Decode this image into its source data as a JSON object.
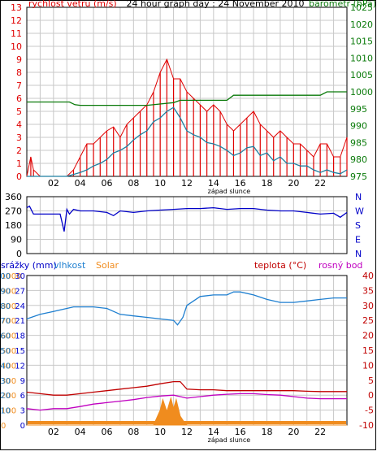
{
  "colors": {
    "wind": "#e00000",
    "gust": "#1f7fa0",
    "pressure": "#0a7a0a",
    "direction": "#0000c8",
    "humidity": "#1e7fd0",
    "temperature": "#c00000",
    "dewpoint": "#c000c0",
    "solar": "#f08c1e",
    "grid": "#c8c8c8",
    "axis": "#000000"
  },
  "chart_data": [
    {
      "type": "line",
      "name": "wind_pressure",
      "title": "24 hour graph day : 24 November 2010",
      "left_label": "rychlost vetru (m/s)",
      "right_label": "barometr (hPa)",
      "sunset_label": "západ slunce",
      "x_ticks": [
        "02",
        "04",
        "06",
        "08",
        "10",
        "12",
        "14",
        "16",
        "18",
        "20",
        "22"
      ],
      "xlim": [
        0,
        24
      ],
      "ylim": [
        0,
        13
      ],
      "y_ticks": [
        0,
        1,
        2,
        3,
        4,
        5,
        6,
        7,
        8,
        9,
        10,
        11,
        12,
        13
      ],
      "y2lim": [
        975,
        1025
      ],
      "y2_ticks": [
        975,
        980,
        985,
        990,
        995,
        1000,
        1005,
        1010,
        1015,
        1020,
        1025
      ],
      "sunset_hour": 13.5,
      "series": [
        {
          "key": "wind_max",
          "x": [
            0,
            0.3,
            0.5,
            1,
            2,
            3,
            3.5,
            4,
            4.5,
            5,
            5.5,
            6,
            6.5,
            7,
            7.5,
            8,
            8.5,
            9,
            9.5,
            10,
            10.5,
            11,
            11.5,
            12,
            12.5,
            13,
            13.5,
            14,
            14.5,
            15,
            15.5,
            16,
            16.5,
            17,
            17.5,
            18,
            18.5,
            19,
            19.5,
            20,
            20.5,
            21,
            21.5,
            22,
            22.5,
            23,
            23.5,
            24
          ],
          "values": [
            0,
            1.5,
            0.5,
            0,
            0,
            0,
            0.5,
            1.5,
            2.5,
            2.5,
            3,
            3.5,
            3.8,
            3,
            4,
            4.5,
            5,
            5.5,
            6.5,
            8,
            9,
            7.5,
            7.5,
            6.5,
            6,
            5.5,
            5,
            5.5,
            5,
            4,
            3.5,
            4,
            4.5,
            5,
            4,
            3.5,
            3,
            3.5,
            3,
            2.5,
            2.5,
            2,
            1.5,
            2.5,
            2.5,
            1.5,
            1.5,
            3
          ]
        },
        {
          "key": "wind_avg",
          "x": [
            0,
            1,
            2,
            3,
            4,
            4.5,
            5,
            5.5,
            6,
            6.5,
            7,
            7.5,
            8,
            8.5,
            9,
            9.5,
            10,
            10.5,
            11,
            11.5,
            12,
            12.5,
            13,
            13.5,
            14,
            14.5,
            15,
            15.5,
            16,
            16.5,
            17,
            17.5,
            18,
            18.5,
            19,
            19.5,
            20,
            20.5,
            21,
            21.5,
            22,
            22.5,
            23,
            23.5,
            24
          ],
          "values": [
            0,
            0,
            0,
            0,
            0.3,
            0.5,
            0.8,
            1,
            1.3,
            1.8,
            2,
            2.3,
            2.8,
            3.2,
            3.5,
            4.2,
            4.5,
            5,
            5.3,
            4.5,
            3.5,
            3.2,
            3,
            2.6,
            2.5,
            2.3,
            2,
            1.6,
            1.8,
            2.2,
            2.3,
            1.6,
            1.8,
            1.2,
            1.5,
            1,
            1,
            0.8,
            0.8,
            0.5,
            0.3,
            0.5,
            0.3,
            0.2,
            0.5
          ]
        },
        {
          "key": "pressure",
          "x": [
            0,
            3.2,
            3.6,
            4,
            9,
            11,
            11.5,
            15,
            15.5,
            22,
            22.5,
            24
          ],
          "values": [
            997,
            997,
            996.2,
            996,
            996,
            996.8,
            997.5,
            997.5,
            999,
            999,
            1000,
            1000
          ]
        }
      ]
    },
    {
      "type": "line",
      "name": "wind_direction",
      "ylim": [
        0,
        360
      ],
      "y_ticks": [
        0,
        90,
        180,
        270,
        360
      ],
      "right_labels": [
        "N",
        "W",
        "S",
        "E",
        "N"
      ],
      "x_ticks": [
        "02",
        "04",
        "06",
        "08",
        "10",
        "12",
        "14",
        "16",
        "18",
        "20",
        "22"
      ],
      "xlim": [
        0,
        24
      ],
      "series": [
        {
          "key": "direction",
          "x": [
            0,
            0.2,
            0.5,
            1,
            2,
            2.5,
            2.8,
            3,
            3.2,
            3.5,
            4,
            5,
            6,
            6.5,
            7,
            8,
            9,
            10,
            11,
            12,
            13,
            14,
            15,
            16,
            17,
            18,
            19,
            20,
            21,
            22,
            23,
            23.5,
            24
          ],
          "values": [
            290,
            300,
            250,
            250,
            250,
            250,
            140,
            280,
            250,
            280,
            270,
            270,
            260,
            240,
            270,
            260,
            270,
            275,
            280,
            285,
            285,
            290,
            280,
            285,
            285,
            275,
            270,
            270,
            260,
            250,
            255,
            230,
            260
          ]
        }
      ]
    },
    {
      "type": "line",
      "name": "temp_humidity",
      "header": {
        "rain": "srážky (mm)",
        "humidity": "vlhkost",
        "solar": "Solar",
        "temperature": "teplota (°C)",
        "dewpoint": "rosný bod"
      },
      "sunset_label": "západ slunce",
      "x_ticks": [
        "02",
        "04",
        "06",
        "08",
        "10",
        "12",
        "14",
        "16",
        "18",
        "20",
        "22"
      ],
      "xlim": [
        0,
        24
      ],
      "rain_ticks": [
        0,
        3,
        6,
        9,
        12,
        15,
        18,
        21,
        24,
        27,
        30
      ],
      "humidity_ticks": [
        0,
        10,
        20,
        30,
        40,
        50,
        60,
        70,
        80,
        90,
        100
      ],
      "solar_ticks": [
        0,
        100,
        200,
        300,
        400,
        500,
        600,
        700,
        800,
        900,
        1000
      ],
      "temp_ticks": [
        -10,
        -5,
        0,
        5,
        10,
        15,
        20,
        25,
        30,
        35,
        40
      ],
      "temp_lim": [
        -10,
        40
      ],
      "humidity_lim": [
        0,
        100
      ],
      "solar_lim": [
        0,
        1000
      ],
      "series": [
        {
          "key": "humidity",
          "x": [
            0,
            1,
            2,
            3,
            3.5,
            4,
            5,
            6,
            7,
            8,
            9,
            10,
            11,
            11.3,
            11.7,
            12,
            13,
            14,
            15,
            15.5,
            16,
            17,
            18,
            19,
            20,
            21,
            22,
            23,
            24
          ],
          "values": [
            71,
            74,
            76,
            78,
            79,
            79,
            79,
            78,
            74,
            73,
            72,
            71,
            70,
            67,
            72,
            80,
            86,
            87,
            87,
            89,
            89,
            87,
            84,
            82,
            82,
            83,
            84,
            85,
            85
          ]
        },
        {
          "key": "temperature",
          "x": [
            0,
            1,
            2,
            3,
            4,
            5,
            6,
            7,
            8,
            9,
            10,
            11,
            11.5,
            12,
            13,
            14,
            15,
            16,
            17,
            18,
            19,
            20,
            21,
            22,
            23,
            24
          ],
          "values": [
            1,
            0.5,
            0,
            0,
            0.5,
            1,
            1.5,
            2,
            2.5,
            3,
            3.8,
            4.5,
            4.5,
            2,
            1.8,
            1.8,
            1.5,
            1.5,
            1.5,
            1.5,
            1.5,
            1.5,
            1.3,
            1.2,
            1.2,
            1.2
          ]
        },
        {
          "key": "dewpoint",
          "x": [
            0,
            1,
            2,
            3,
            4,
            5,
            6,
            7,
            8,
            9,
            10,
            11,
            11.5,
            12,
            13,
            14,
            15,
            16,
            17,
            18,
            19,
            20,
            21,
            22,
            23,
            24
          ],
          "values": [
            -4.5,
            -5,
            -4.5,
            -4.5,
            -3.8,
            -3,
            -2.5,
            -2,
            -1.5,
            -0.8,
            -0.3,
            0,
            -0.5,
            -1,
            -0.5,
            0,
            0.3,
            0.5,
            0.5,
            0.2,
            0,
            -0.5,
            -1,
            -1.2,
            -1.2,
            -1.2
          ]
        },
        {
          "key": "solar",
          "x": [
            0,
            9.5,
            10,
            10.2,
            10.5,
            10.8,
            11,
            11.2,
            11.5,
            11.8,
            12,
            12.5,
            24
          ],
          "values": [
            0,
            0,
            100,
            170,
            90,
            180,
            110,
            170,
            60,
            20,
            0,
            0,
            0
          ]
        }
      ]
    }
  ]
}
